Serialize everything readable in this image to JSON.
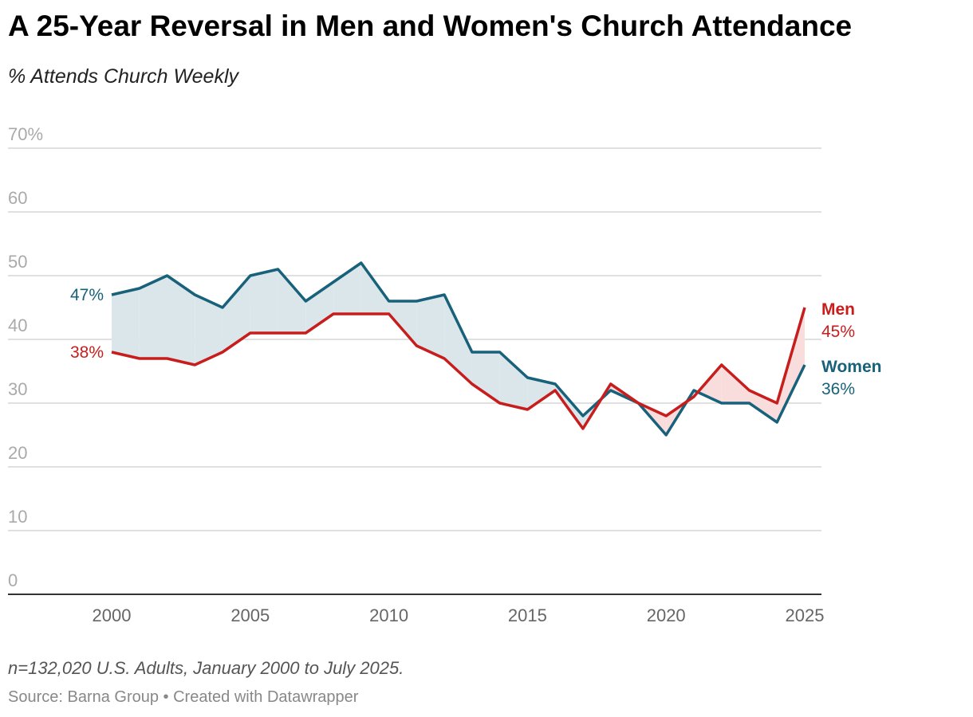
{
  "title": "A 25-Year Reversal in Men and Women's Church Attendance",
  "subtitle": "% Attends Church Weekly",
  "notes": "n=132,020 U.S. Adults, January 2000 to July 2025.",
  "source": "Source: Barna Group • Created with Datawrapper",
  "chart_data": {
    "type": "line",
    "title": "A 25-Year Reversal in Men and Women's Church Attendance",
    "ylabel": "% Attends Church Weekly",
    "ylim": [
      0,
      70
    ],
    "yticks": [
      "0",
      "10",
      "20",
      "30",
      "40",
      "50",
      "60",
      "70%"
    ],
    "ytick_values": [
      0,
      10,
      20,
      30,
      40,
      50,
      60,
      70
    ],
    "xticks": [
      "2000",
      "2005",
      "2010",
      "2015",
      "2020",
      "2025"
    ],
    "xtick_values": [
      2000,
      2005,
      2010,
      2015,
      2020,
      2025
    ],
    "x": [
      2000,
      2001,
      2002,
      2003,
      2004,
      2005,
      2006,
      2007,
      2008,
      2009,
      2010,
      2011,
      2012,
      2013,
      2014,
      2015,
      2016,
      2017,
      2018,
      2019,
      2020,
      2021,
      2022,
      2023,
      2024,
      2025
    ],
    "series": [
      {
        "name": "Women",
        "color": "#18617b",
        "fill": "#dbe6eb",
        "values": [
          47,
          48,
          50,
          47,
          45,
          50,
          51,
          46,
          49,
          52,
          46,
          46,
          47,
          38,
          38,
          34,
          33,
          28,
          32,
          30,
          25,
          32,
          30,
          30,
          27,
          36
        ],
        "start_label": "47%",
        "end_label": "36%"
      },
      {
        "name": "Men",
        "color": "#c71e1d",
        "fill": "#f9dcdc",
        "values": [
          38,
          37,
          37,
          36,
          38,
          41,
          41,
          41,
          44,
          44,
          44,
          39,
          37,
          33,
          30,
          29,
          32,
          26,
          33,
          30,
          28,
          31,
          36,
          32,
          30,
          45
        ],
        "start_label": "38%",
        "end_label": "45%"
      }
    ],
    "grid": true
  }
}
